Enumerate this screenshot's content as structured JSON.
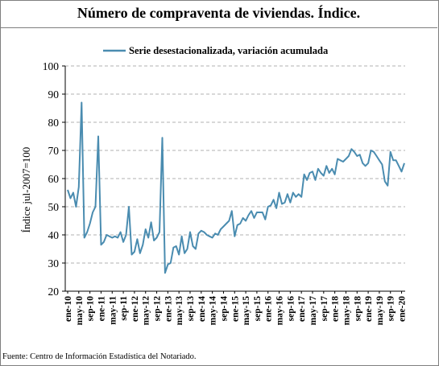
{
  "title": "Número de compraventa de viviendas. Índice.",
  "source": "Fuente: Centro de Información Estadística del Notariado.",
  "chart_data": {
    "type": "line",
    "ylabel": "Índice jul-2007=100",
    "ylim": [
      20,
      100
    ],
    "yticks": [
      20,
      30,
      40,
      50,
      60,
      70,
      80,
      90,
      100
    ],
    "grid": "horizontal-dashed",
    "legend_placement": "top",
    "series_color": "#4a8cb0",
    "x_tick_labels": [
      "ene-10",
      "may-10",
      "sep-10",
      "ene-11",
      "may-11",
      "sep-11",
      "ene-12",
      "may-12",
      "sep-12",
      "ene-13",
      "may-13",
      "sep-13",
      "ene-14",
      "may-14",
      "sep-14",
      "ene-15",
      "may-15",
      "sep-15",
      "ene-16",
      "may-16",
      "sep-16",
      "ene-17",
      "may-17",
      "sep-17",
      "ene-18",
      "may-18",
      "sep-18",
      "ene-19",
      "may-19",
      "sep-19",
      "ene-20"
    ],
    "x_tick_step_months": 4,
    "series": [
      {
        "name": "Serie desestacionalizada, variación acumulada",
        "values": [
          56.0,
          53.0,
          55.0,
          50.0,
          57.0,
          87.0,
          39.0,
          41.0,
          44.0,
          48.0,
          50.0,
          75.0,
          36.5,
          37.5,
          40.0,
          39.5,
          39.0,
          39.5,
          39.0,
          41.0,
          37.5,
          40.0,
          50.0,
          33.0,
          34.0,
          38.5,
          33.5,
          36.5,
          42.0,
          39.0,
          44.5,
          38.0,
          39.0,
          41.0,
          74.5,
          26.5,
          29.5,
          30.0,
          35.5,
          36.0,
          33.0,
          39.5,
          33.5,
          35.0,
          41.0,
          36.0,
          35.0,
          40.5,
          41.5,
          41.0,
          40.0,
          39.5,
          39.0,
          40.5,
          40.0,
          42.0,
          43.0,
          44.0,
          45.0,
          48.5,
          39.5,
          43.5,
          44.0,
          46.0,
          45.0,
          47.0,
          48.5,
          46.0,
          48.0,
          48.0,
          48.0,
          45.5,
          50.0,
          50.5,
          52.5,
          49.5,
          55.0,
          51.0,
          51.5,
          54.5,
          51.5,
          55.0,
          53.5,
          54.5,
          53.5,
          61.5,
          59.5,
          62.0,
          62.5,
          59.5,
          63.5,
          62.0,
          61.0,
          64.5,
          62.0,
          63.5,
          61.5,
          67.0,
          66.5,
          66.0,
          67.0,
          68.0,
          70.5,
          69.5,
          68.0,
          68.5,
          65.5,
          64.5,
          65.5,
          70.0,
          69.5,
          68.0,
          66.5,
          65.0,
          59.0,
          57.5,
          69.5,
          66.5,
          66.5,
          64.5,
          62.5,
          65.5
        ]
      }
    ]
  }
}
